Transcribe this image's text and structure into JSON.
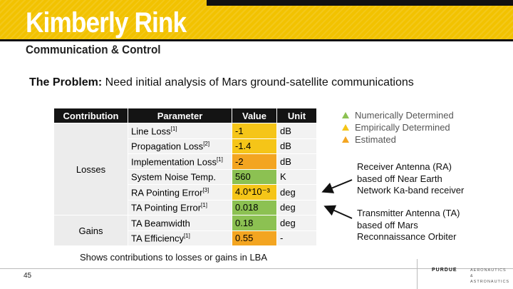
{
  "header": {
    "title": "Kimberly Rink",
    "subtitle": "Communication & Control"
  },
  "problem": {
    "label": "The Problem:",
    "text": " Need initial analysis of Mars ground-satellite communications"
  },
  "table": {
    "headers": [
      "Contribution",
      "Parameter",
      "Value",
      "Unit"
    ],
    "groups": [
      {
        "name": "Losses"
      },
      {
        "name": "Gains"
      }
    ],
    "rows": [
      {
        "param": "Line Loss",
        "ref": "[1]",
        "value": "-1",
        "unit": "dB",
        "color": "#f5c518"
      },
      {
        "param": "Propagation Loss",
        "ref": "[2]",
        "value": "-1.4",
        "unit": "dB",
        "color": "#f5c518"
      },
      {
        "param": "Implementation Loss",
        "ref": "[1]",
        "value": "-2",
        "unit": "dB",
        "color": "#f3a521"
      },
      {
        "param": "System Noise Temp.",
        "ref": "",
        "value": "560",
        "unit": "K",
        "color": "#8cc152"
      },
      {
        "param": "RA Pointing Error",
        "ref": "[3]",
        "value": "4.0*10⁻³",
        "unit": "deg",
        "color": "#f5c518"
      },
      {
        "param": "TA Pointing Error",
        "ref": "[1]",
        "value": "0.018",
        "unit": "deg",
        "color": "#8cc152"
      },
      {
        "param": "TA Beamwidth",
        "ref": "",
        "value": "0.18",
        "unit": "deg",
        "color": "#8cc152"
      },
      {
        "param": "TA Efficiency",
        "ref": "[1]",
        "value": "0.55",
        "unit": "-",
        "color": "#f3a521"
      }
    ]
  },
  "legend": {
    "items": [
      {
        "label": "Numerically Determined",
        "color": "#8cc152"
      },
      {
        "label": "Empirically Determined",
        "color": "#f5c518"
      },
      {
        "label": "Estimated",
        "color": "#f3a521"
      }
    ]
  },
  "notes": {
    "ra": [
      "Receiver Antenna (RA)",
      "based off Near Earth",
      "Network Ka-band receiver"
    ],
    "ta": [
      "Transmitter Antenna (TA)",
      "based off Mars",
      "Reconnaissance Orbiter"
    ]
  },
  "caption": "Shows contributions to losses or gains in LBA",
  "footer": {
    "page_number": "45",
    "logo_left": "PURDUE",
    "logo_right_1": "AERONAUTICS",
    "logo_right_2": "& ASTRONAUTICS"
  }
}
